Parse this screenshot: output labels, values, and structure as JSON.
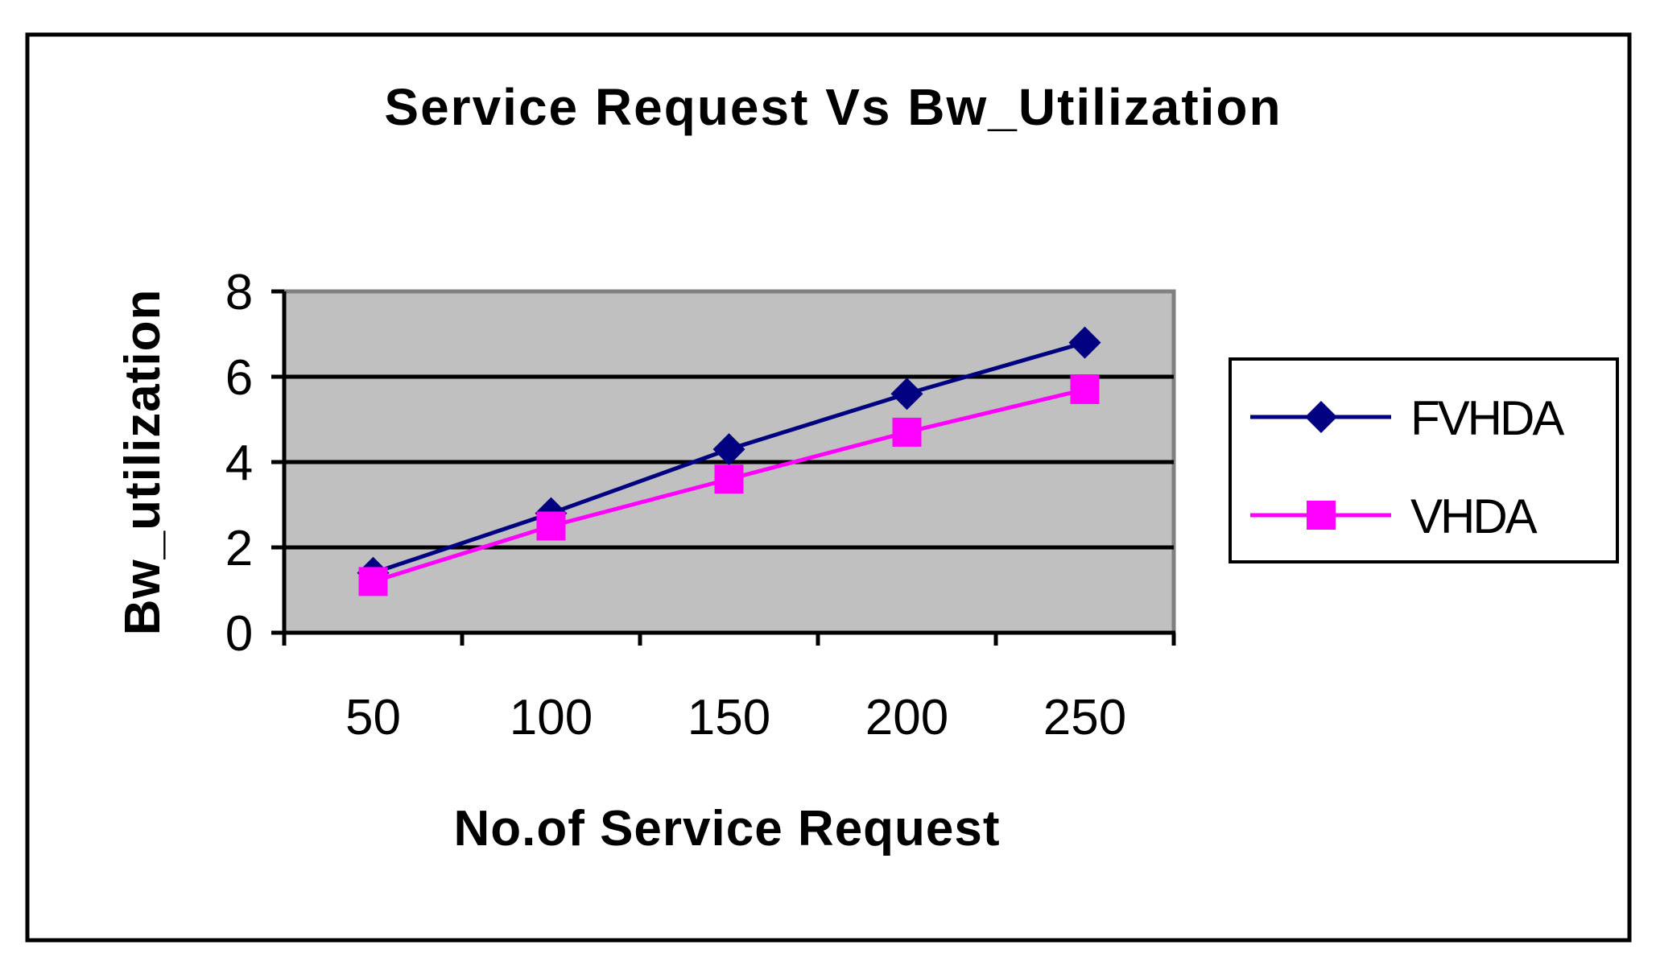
{
  "chart_data": {
    "type": "line",
    "title": "Service Request Vs Bw_Utilization",
    "xlabel": "No.of Service Request",
    "ylabel": "Bw_utilization",
    "categories": [
      "50",
      "100",
      "150",
      "200",
      "250"
    ],
    "ylim": [
      0,
      8
    ],
    "yticks": [
      "0",
      "2",
      "4",
      "6",
      "8"
    ],
    "grid": true,
    "legend_position": "right",
    "plot_background": "#c0c0c0",
    "series": [
      {
        "name": "FVHDA",
        "values": [
          1.4,
          2.8,
          4.3,
          5.6,
          6.8
        ],
        "color": "#000080",
        "marker": "diamond"
      },
      {
        "name": "VHDA",
        "values": [
          1.2,
          2.5,
          3.6,
          4.7,
          5.7
        ],
        "color": "#ff00ff",
        "marker": "square"
      }
    ]
  }
}
